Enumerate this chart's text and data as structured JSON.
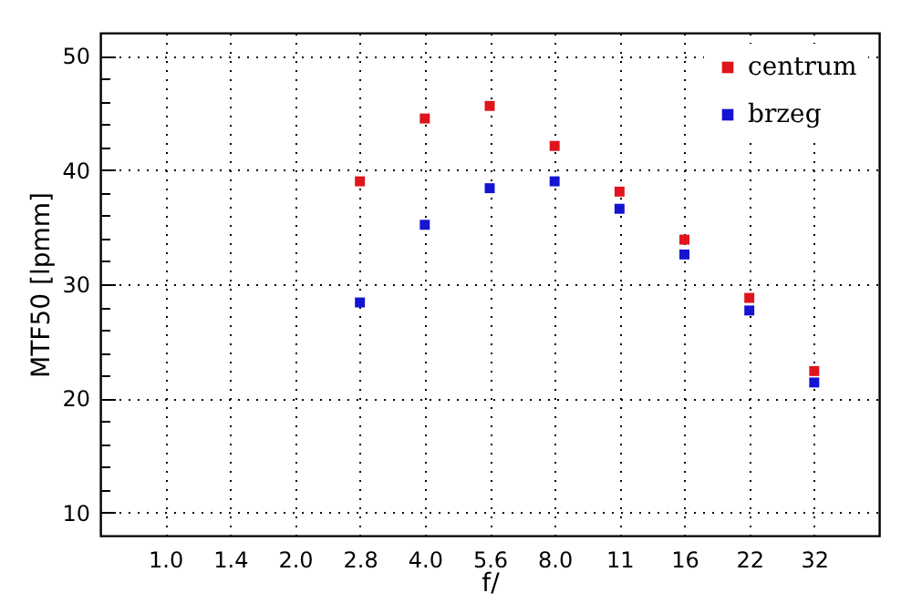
{
  "chart_data": {
    "type": "scatter",
    "xlabel": "f/",
    "ylabel": "MTF50 [lpmm]",
    "categories": [
      "1.0",
      "1.4",
      "2.0",
      "2.8",
      "4.0",
      "5.6",
      "8.0",
      "11",
      "16",
      "22",
      "32"
    ],
    "series": [
      {
        "name": "centrum",
        "color": "#e0141c",
        "values": [
          null,
          null,
          null,
          39.0,
          44.5,
          45.6,
          42.1,
          38.1,
          33.9,
          28.8,
          22.4
        ]
      },
      {
        "name": "brzeg",
        "color": "#1414d2",
        "values": [
          null,
          null,
          null,
          28.4,
          35.2,
          38.4,
          39.0,
          36.6,
          32.6,
          27.7,
          21.4
        ]
      }
    ],
    "ylim": [
      8,
      52
    ],
    "yticks": [
      10,
      {
        "value": 12,
        "label": null
      },
      {
        "value": 14,
        "label": null
      },
      {
        "value": 16,
        "label": null
      },
      {
        "value": 18,
        "label": null
      },
      20,
      {
        "value": 22,
        "label": null
      },
      {
        "value": 24,
        "label": null
      },
      {
        "value": 26,
        "label": null
      },
      {
        "value": 28,
        "label": null
      },
      30,
      {
        "value": 32,
        "label": null
      },
      {
        "value": 34,
        "label": null
      },
      {
        "value": 36,
        "label": null
      },
      {
        "value": 38,
        "label": null
      },
      40,
      {
        "value": 42,
        "label": null
      },
      {
        "value": 44,
        "label": null
      },
      {
        "value": 46,
        "label": null
      },
      {
        "value": 48,
        "label": null
      },
      50
    ],
    "grid": true,
    "legend": "top right",
    "marker": "square"
  }
}
